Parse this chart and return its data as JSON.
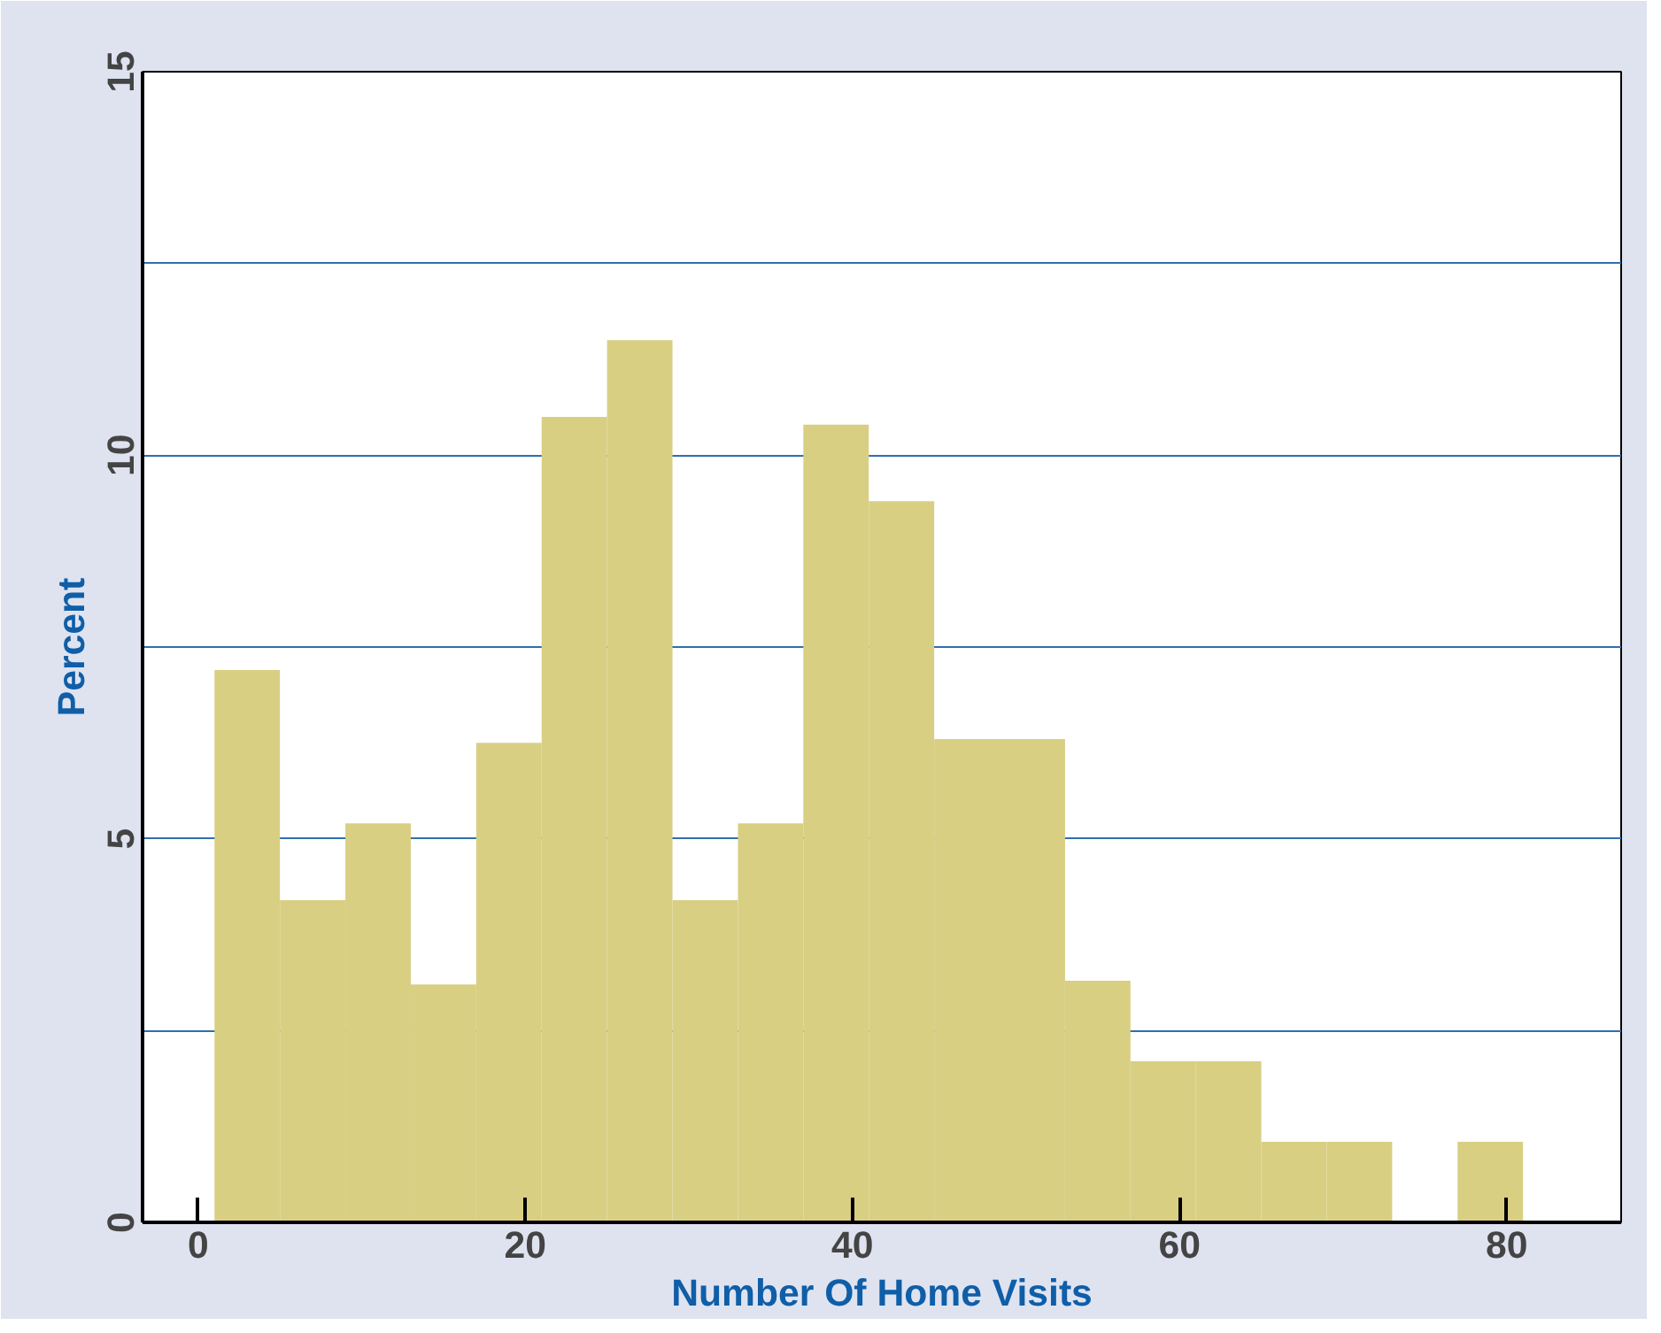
{
  "chart_data": {
    "type": "histogram",
    "xlabel": "Number Of Home Visits",
    "ylabel": "Percent",
    "bins": [
      1,
      5,
      9,
      13,
      17,
      21,
      25,
      29,
      33,
      37,
      41,
      45,
      49,
      53,
      57,
      61,
      65,
      69,
      73,
      77,
      81
    ],
    "values": [
      7.2,
      4.2,
      5.2,
      3.1,
      6.25,
      10.5,
      11.5,
      4.2,
      5.2,
      10.4,
      9.4,
      6.3,
      6.3,
      3.15,
      2.1,
      2.1,
      1.05,
      1.05,
      0,
      1.05
    ],
    "color": "#d9cf83",
    "xlim": [
      -3.4,
      87
    ],
    "xticks": [
      0,
      20,
      40,
      60,
      80
    ],
    "ylim": [
      0,
      15
    ],
    "yticks": [
      0,
      {
        "value": 2.5,
        "label": null
      },
      5,
      {
        "value": 7.5,
        "label": null
      },
      10,
      {
        "value": 12.5,
        "label": null
      },
      15
    ],
    "grid": "y"
  }
}
